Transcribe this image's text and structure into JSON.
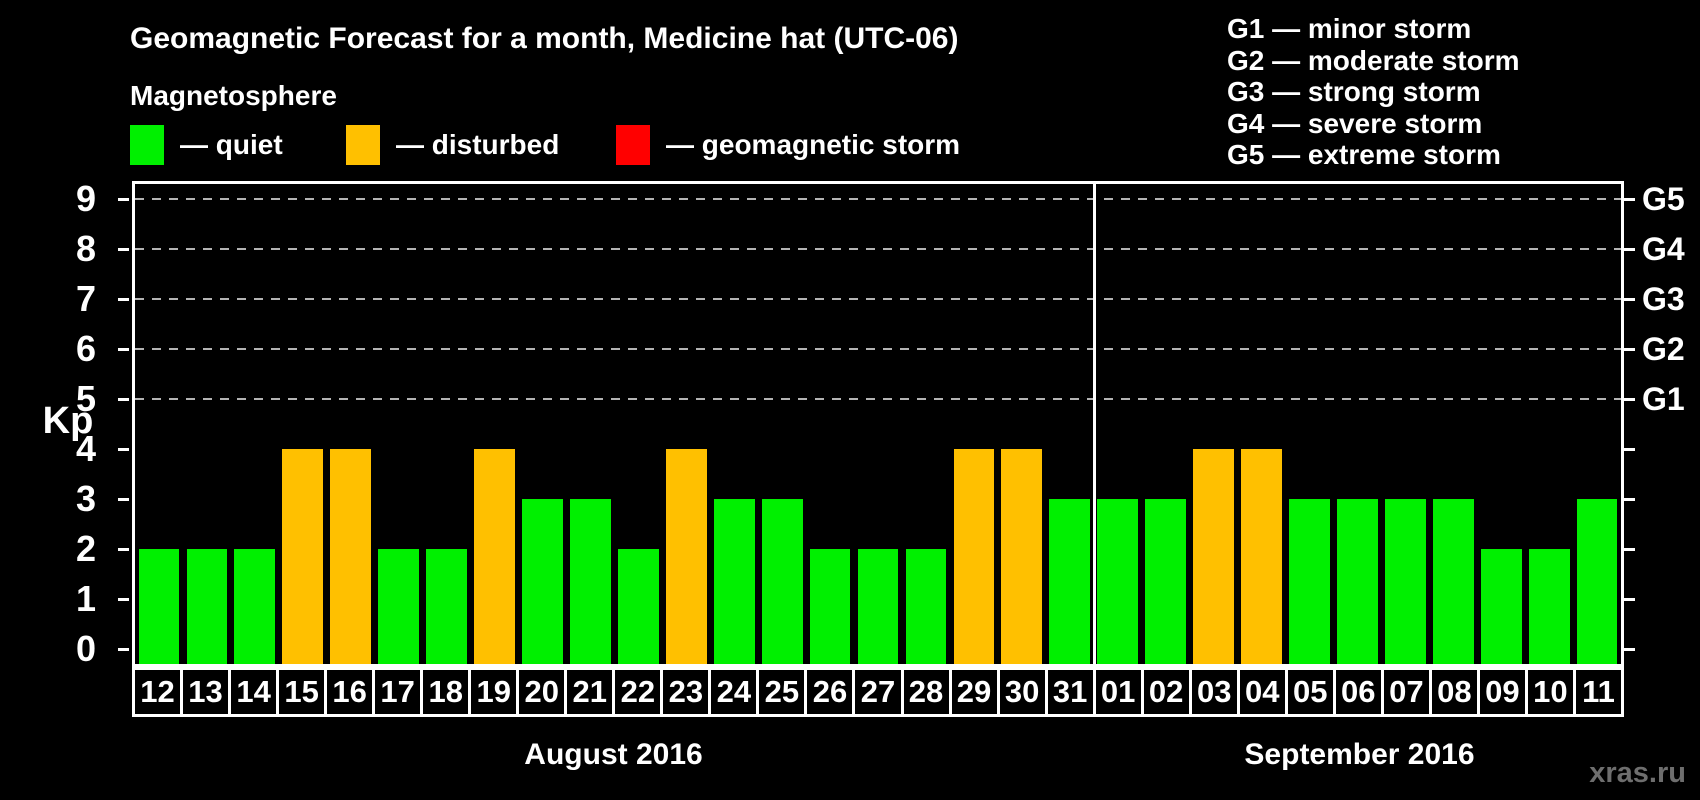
{
  "header": {
    "title": "Geomagnetic Forecast for a month, Medicine hat (UTC-06)",
    "subtitle": "Magnetosphere"
  },
  "legend": {
    "items": [
      {
        "name": "quiet",
        "label": "— quiet",
        "color": "#00f000"
      },
      {
        "name": "disturbed",
        "label": "— disturbed",
        "color": "#ffc000"
      },
      {
        "name": "storm",
        "label": "— geomagnetic storm",
        "color": "#ff0000"
      }
    ]
  },
  "storm_scale_legend": {
    "items": [
      "G1 — minor storm",
      "G2 — moderate storm",
      "G3 — strong storm",
      "G4 — severe storm",
      "G5 — extreme storm"
    ]
  },
  "watermark": "xras.ru",
  "chart_data": {
    "type": "bar",
    "title": "Geomagnetic Forecast for a month, Medicine hat (UTC-06)",
    "xlabel": "",
    "ylabel": "Kp",
    "ylim": [
      0,
      9
    ],
    "yticks": [
      0,
      1,
      2,
      3,
      4,
      5,
      6,
      7,
      8,
      9
    ],
    "grid": "horizontal dashed lines at Kp 5-9 (G1-G5 storm thresholds)",
    "legend_position": "top-left",
    "right_axis_labels": [
      {
        "label": "G1",
        "kp": 5
      },
      {
        "label": "G2",
        "kp": 6
      },
      {
        "label": "G3",
        "kp": 7
      },
      {
        "label": "G4",
        "kp": 8
      },
      {
        "label": "G5",
        "kp": 9
      }
    ],
    "months": [
      {
        "label": "August 2016",
        "start_index": 0,
        "days": 20
      },
      {
        "label": "September 2016",
        "start_index": 20,
        "days": 11
      }
    ],
    "status_colors": {
      "quiet": "#00f000",
      "disturbed": "#ffc000",
      "storm": "#ff0000"
    },
    "points": [
      {
        "day": "12",
        "month": "August 2016",
        "kp": 2,
        "status": "quiet"
      },
      {
        "day": "13",
        "month": "August 2016",
        "kp": 2,
        "status": "quiet"
      },
      {
        "day": "14",
        "month": "August 2016",
        "kp": 2,
        "status": "quiet"
      },
      {
        "day": "15",
        "month": "August 2016",
        "kp": 4,
        "status": "disturbed"
      },
      {
        "day": "16",
        "month": "August 2016",
        "kp": 4,
        "status": "disturbed"
      },
      {
        "day": "17",
        "month": "August 2016",
        "kp": 2,
        "status": "quiet"
      },
      {
        "day": "18",
        "month": "August 2016",
        "kp": 2,
        "status": "quiet"
      },
      {
        "day": "19",
        "month": "August 2016",
        "kp": 4,
        "status": "disturbed"
      },
      {
        "day": "20",
        "month": "August 2016",
        "kp": 3,
        "status": "quiet"
      },
      {
        "day": "21",
        "month": "August 2016",
        "kp": 3,
        "status": "quiet"
      },
      {
        "day": "22",
        "month": "August 2016",
        "kp": 2,
        "status": "quiet"
      },
      {
        "day": "23",
        "month": "August 2016",
        "kp": 4,
        "status": "disturbed"
      },
      {
        "day": "24",
        "month": "August 2016",
        "kp": 3,
        "status": "quiet"
      },
      {
        "day": "25",
        "month": "August 2016",
        "kp": 3,
        "status": "quiet"
      },
      {
        "day": "26",
        "month": "August 2016",
        "kp": 2,
        "status": "quiet"
      },
      {
        "day": "27",
        "month": "August 2016",
        "kp": 2,
        "status": "quiet"
      },
      {
        "day": "28",
        "month": "August 2016",
        "kp": 2,
        "status": "quiet"
      },
      {
        "day": "29",
        "month": "August 2016",
        "kp": 4,
        "status": "disturbed"
      },
      {
        "day": "30",
        "month": "August 2016",
        "kp": 4,
        "status": "disturbed"
      },
      {
        "day": "31",
        "month": "August 2016",
        "kp": 3,
        "status": "quiet"
      },
      {
        "day": "01",
        "month": "September 2016",
        "kp": 3,
        "status": "quiet"
      },
      {
        "day": "02",
        "month": "September 2016",
        "kp": 3,
        "status": "quiet"
      },
      {
        "day": "03",
        "month": "September 2016",
        "kp": 4,
        "status": "disturbed"
      },
      {
        "day": "04",
        "month": "September 2016",
        "kp": 4,
        "status": "disturbed"
      },
      {
        "day": "05",
        "month": "September 2016",
        "kp": 3,
        "status": "quiet"
      },
      {
        "day": "06",
        "month": "September 2016",
        "kp": 3,
        "status": "quiet"
      },
      {
        "day": "07",
        "month": "September 2016",
        "kp": 3,
        "status": "quiet"
      },
      {
        "day": "08",
        "month": "September 2016",
        "kp": 3,
        "status": "quiet"
      },
      {
        "day": "09",
        "month": "September 2016",
        "kp": 2,
        "status": "quiet"
      },
      {
        "day": "10",
        "month": "September 2016",
        "kp": 2,
        "status": "quiet"
      },
      {
        "day": "11",
        "month": "September 2016",
        "kp": 3,
        "status": "quiet"
      }
    ]
  }
}
